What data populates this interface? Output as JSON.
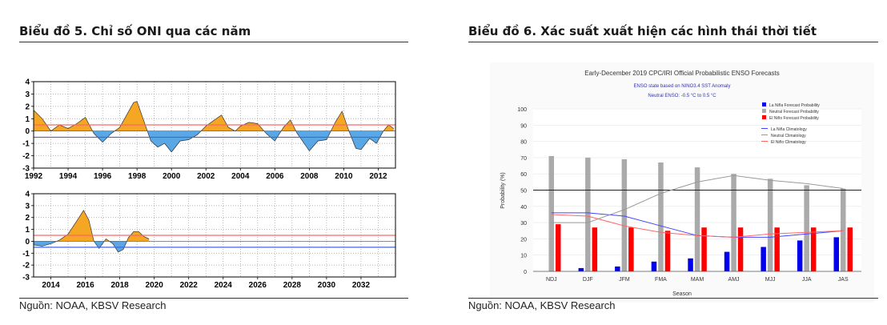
{
  "left": {
    "title": "Biểu đồ 5. Chỉ số ONI qua các năm",
    "source": "Nguồn: NOAA, KBSV Research",
    "thresholds": {
      "el_nino": 0.5,
      "la_nina": -0.5
    },
    "colors": {
      "positive": "#f5a623",
      "negative": "#5aa7e6",
      "el_nino_line": "#ff6666",
      "la_nina_line": "#4466dd"
    },
    "top": {
      "type": "area",
      "ylim": [
        -3,
        4
      ],
      "yticks": [
        "4",
        "3",
        "2",
        "1",
        "0",
        "-1",
        "-2",
        "-3"
      ],
      "xlim": [
        1992,
        2013
      ],
      "xticks": [
        "1992",
        "1994",
        "1996",
        "1998",
        "2000",
        "2002",
        "2004",
        "2006",
        "2008",
        "2010",
        "2012"
      ],
      "x": [
        1992.0,
        1992.5,
        1993.0,
        1993.5,
        1994.0,
        1994.5,
        1995.0,
        1995.5,
        1996.0,
        1996.5,
        1997.0,
        1997.4,
        1997.8,
        1998.0,
        1998.4,
        1998.8,
        1999.2,
        1999.6,
        2000.0,
        2000.5,
        2001.0,
        2001.5,
        2002.0,
        2002.5,
        2002.9,
        2003.3,
        2003.7,
        2004.0,
        2004.5,
        2005.0,
        2005.5,
        2006.0,
        2006.5,
        2006.9,
        2007.3,
        2007.7,
        2008.0,
        2008.5,
        2009.0,
        2009.5,
        2009.9,
        2010.3,
        2010.7,
        2011.0,
        2011.5,
        2011.9,
        2012.3,
        2012.6,
        2012.9
      ],
      "y": [
        1.7,
        1.0,
        0.0,
        0.5,
        0.2,
        0.6,
        1.1,
        -0.2,
        -0.9,
        -0.2,
        0.3,
        1.3,
        2.3,
        2.4,
        0.8,
        -0.8,
        -1.3,
        -1.0,
        -1.7,
        -0.8,
        -0.7,
        -0.3,
        0.4,
        0.9,
        1.3,
        0.3,
        0.0,
        0.4,
        0.7,
        0.6,
        -0.2,
        -0.8,
        0.3,
        0.9,
        -0.2,
        -1.0,
        -1.6,
        -0.8,
        -0.7,
        0.7,
        1.6,
        0.0,
        -1.4,
        -1.5,
        -0.6,
        -1.0,
        0.0,
        0.5,
        0.2
      ]
    },
    "bottom": {
      "type": "area",
      "ylim": [
        -3,
        4
      ],
      "yticks": [
        "4",
        "3",
        "2",
        "1",
        "0",
        "-1",
        "-2",
        "-3"
      ],
      "xlim": [
        2013,
        2034
      ],
      "xticks": [
        "2014",
        "2016",
        "2018",
        "2020",
        "2022",
        "2024",
        "2026",
        "2028",
        "2030",
        "2032"
      ],
      "x": [
        2013.0,
        2013.5,
        2014.0,
        2014.5,
        2015.0,
        2015.5,
        2015.9,
        2016.2,
        2016.5,
        2016.8,
        2017.2,
        2017.6,
        2017.9,
        2018.2,
        2018.5,
        2018.8,
        2019.1,
        2019.4,
        2019.7
      ],
      "y": [
        -0.3,
        -0.4,
        -0.2,
        0.1,
        0.6,
        1.7,
        2.6,
        1.8,
        0.0,
        -0.6,
        0.2,
        -0.2,
        -0.9,
        -0.7,
        0.3,
        0.8,
        0.8,
        0.4,
        0.2
      ]
    }
  },
  "right": {
    "title": "Biểu đồ 6. Xác suất xuất hiện các hình thái thời tiết",
    "source": "Nguồn: NOAA, KBSV Research",
    "chart_data": {
      "type": "bar",
      "title": "Early-December 2019 CPC/IRI Official Probabilistic ENSO Forecasts",
      "subtitle1": "ENSO state based on NINO3.4 SST Anomaly",
      "subtitle2": "Neutral ENSO: -0.5 °C to 0.5 °C",
      "xlabel": "Season",
      "ylabel": "Probability (%)",
      "ylim": [
        0,
        100
      ],
      "yticks": [
        "0",
        "10",
        "20",
        "30",
        "40",
        "50",
        "60",
        "70",
        "80",
        "90",
        "100"
      ],
      "categories": [
        "NDJ",
        "DJF",
        "JFM",
        "FMA",
        "MAM",
        "AMJ",
        "MJJ",
        "JJA",
        "JAS"
      ],
      "series": [
        {
          "name": "La Niña Forecast Probability",
          "color": "#0000ee",
          "values": [
            0,
            2,
            3,
            6,
            8,
            12,
            15,
            19,
            21
          ]
        },
        {
          "name": "Neutral Forecast Probability",
          "color": "#aaaaaa",
          "values": [
            71,
            70,
            69,
            67,
            64,
            60,
            57,
            53,
            51
          ]
        },
        {
          "name": "El Niño Forecast Probability",
          "color": "#ff0000",
          "values": [
            29,
            27,
            27,
            25,
            27,
            27,
            27,
            27,
            27
          ]
        }
      ],
      "lines": [
        {
          "name": "La Niña Climatology",
          "color": "#4444ff",
          "values": [
            36,
            36,
            34,
            28,
            22,
            21,
            21,
            23,
            25
          ]
        },
        {
          "name": "Neutral Climatology",
          "color": "#999999",
          "values": [
            30,
            30,
            38,
            48,
            55,
            59,
            56,
            54,
            51
          ]
        },
        {
          "name": "El Niño Climatology",
          "color": "#ff6666",
          "values": [
            35,
            34,
            28,
            24,
            22,
            21,
            23,
            24,
            25
          ]
        }
      ],
      "reference_line": 50,
      "legend_position": "top-right"
    }
  }
}
